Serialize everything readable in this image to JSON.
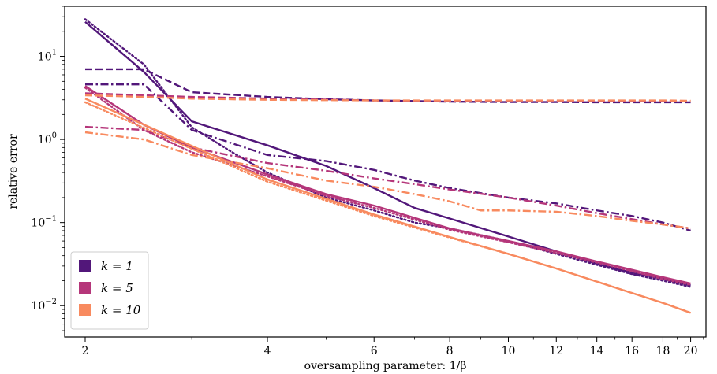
{
  "chart_data": {
    "type": "line",
    "xlabel": "oversampling parameter: 1/β",
    "ylabel": "relative error",
    "xscale": "log",
    "yscale": "log",
    "xlim": [
      1.85,
      21.2
    ],
    "ylim": [
      0.0042,
      40
    ],
    "x_ticks": [
      2,
      4,
      6,
      8,
      10,
      12,
      14,
      16,
      18,
      20
    ],
    "y_ticks": [
      {
        "value": 0.01,
        "base": "10",
        "exp": "−2"
      },
      {
        "value": 0.1,
        "base": "10",
        "exp": "−1"
      },
      {
        "value": 1,
        "base": "10",
        "exp": "0"
      },
      {
        "value": 10,
        "base": "10",
        "exp": "1"
      }
    ],
    "legend_position": "bottom-left",
    "legend": [
      {
        "label": "k = 1",
        "color": "#52177a"
      },
      {
        "label": "k = 5",
        "color": "#b5367a"
      },
      {
        "label": "k = 10",
        "color": "#f88a5f"
      }
    ],
    "series": [
      {
        "group": 1,
        "color": "#52177a",
        "style": "solid",
        "x": [
          2,
          2.5,
          3,
          4,
          5,
          6,
          7,
          8,
          10,
          12,
          14,
          16,
          18,
          20
        ],
        "y": [
          26,
          6.5,
          1.65,
          0.85,
          0.48,
          0.26,
          0.15,
          0.112,
          0.068,
          0.045,
          0.032,
          0.025,
          0.021,
          0.0175
        ]
      },
      {
        "group": 1,
        "color": "#52177a",
        "style": "dashed",
        "x": [
          2,
          2.5,
          3,
          4,
          5,
          6,
          8,
          10,
          12,
          14,
          16,
          18,
          20
        ],
        "y": [
          7.0,
          7.0,
          3.7,
          3.25,
          3.05,
          2.95,
          2.85,
          2.82,
          2.82,
          2.8,
          2.8,
          2.8,
          2.8
        ]
      },
      {
        "group": 1,
        "color": "#52177a",
        "style": "dashdot",
        "x": [
          2,
          2.5,
          3,
          4,
          5,
          6,
          7,
          8,
          10,
          12,
          14,
          16,
          18,
          20
        ],
        "y": [
          4.6,
          4.6,
          1.3,
          0.65,
          0.55,
          0.43,
          0.32,
          0.26,
          0.2,
          0.17,
          0.14,
          0.12,
          0.1,
          0.08
        ]
      },
      {
        "group": 1,
        "color": "#52177a",
        "style": "dotted",
        "x": [
          2,
          2.5,
          3,
          3.5,
          4,
          5,
          6,
          7,
          8,
          10,
          12,
          14,
          16,
          18,
          20
        ],
        "y": [
          28,
          8,
          1.4,
          0.7,
          0.4,
          0.2,
          0.14,
          0.1,
          0.085,
          0.06,
          0.042,
          0.031,
          0.024,
          0.02,
          0.0168
        ]
      },
      {
        "group": 5,
        "color": "#b5367a",
        "style": "solid",
        "x": [
          2,
          2.5,
          3,
          4,
          5,
          6,
          8,
          10,
          12,
          14,
          16,
          18,
          20
        ],
        "y": [
          4.4,
          1.5,
          0.8,
          0.38,
          0.22,
          0.16,
          0.085,
          0.06,
          0.045,
          0.034,
          0.027,
          0.022,
          0.0185
        ]
      },
      {
        "group": 5,
        "color": "#b5367a",
        "style": "dashed",
        "x": [
          2,
          2.5,
          3,
          4,
          6,
          8,
          10,
          12,
          14,
          16,
          18,
          20
        ],
        "y": [
          3.6,
          3.4,
          3.25,
          3.1,
          2.95,
          2.9,
          2.88,
          2.88,
          2.88,
          2.88,
          2.88,
          2.9
        ]
      },
      {
        "group": 5,
        "color": "#b5367a",
        "style": "dashdot",
        "x": [
          2,
          2.5,
          3,
          4,
          5,
          6,
          7,
          8,
          10,
          12,
          14,
          16,
          18,
          20
        ],
        "y": [
          1.42,
          1.3,
          0.8,
          0.52,
          0.42,
          0.34,
          0.29,
          0.25,
          0.2,
          0.16,
          0.13,
          0.11,
          0.095,
          0.085
        ]
      },
      {
        "group": 5,
        "color": "#b5367a",
        "style": "dotted",
        "x": [
          2,
          2.5,
          3,
          4,
          5,
          6,
          8,
          10,
          12,
          14,
          16,
          18,
          20
        ],
        "y": [
          4.2,
          1.3,
          0.7,
          0.36,
          0.21,
          0.15,
          0.082,
          0.058,
          0.043,
          0.033,
          0.026,
          0.021,
          0.0178
        ]
      },
      {
        "group": 10,
        "color": "#f88a5f",
        "style": "solid",
        "x": [
          2,
          4,
          6,
          8,
          10,
          12,
          14,
          16,
          18,
          20
        ],
        "y": [
          3.1,
          0.33,
          0.125,
          0.067,
          0.042,
          0.028,
          0.0195,
          0.0142,
          0.0108,
          0.0082
        ]
      },
      {
        "group": 10,
        "color": "#f88a5f",
        "style": "dashed",
        "x": [
          2,
          2.5,
          3,
          4,
          6,
          8,
          10,
          12,
          14,
          16,
          18,
          20
        ],
        "y": [
          3.4,
          3.25,
          3.1,
          3.0,
          2.95,
          2.95,
          2.95,
          2.95,
          2.95,
          2.95,
          2.95,
          2.92
        ]
      },
      {
        "group": 10,
        "color": "#f88a5f",
        "style": "dashdot",
        "x": [
          2,
          2.5,
          3,
          4,
          5,
          6,
          7,
          8,
          9,
          10,
          12,
          14,
          16,
          18,
          20
        ],
        "y": [
          1.22,
          1.0,
          0.65,
          0.45,
          0.32,
          0.27,
          0.22,
          0.18,
          0.14,
          0.14,
          0.135,
          0.12,
          0.105,
          0.095,
          0.085
        ]
      },
      {
        "group": 10,
        "color": "#f88a5f",
        "style": "dotted",
        "x": [
          2,
          4,
          6,
          8,
          10,
          12,
          14,
          16,
          18,
          20
        ],
        "y": [
          2.8,
          0.31,
          0.12,
          0.066,
          0.042,
          0.028,
          0.0195,
          0.0142,
          0.0108,
          0.0082
        ]
      }
    ]
  }
}
